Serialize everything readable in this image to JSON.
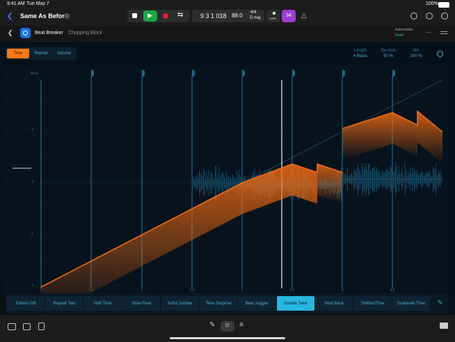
{
  "status_bar": {
    "time": "9:41 AM",
    "date": "Tue May 7",
    "battery": "100%"
  },
  "toolbar": {
    "project": "Same As Before",
    "position": "9 3 1 018",
    "tempo": "88.0",
    "signature": "4/4",
    "key": "D maj",
    "link": "LINK",
    "count": "34"
  },
  "plugin": {
    "name": "Beat Breaker",
    "preset": "Chopping Block",
    "automation": "Automation",
    "automation_mode": "Read"
  },
  "tabs": [
    "Time",
    "Repeat",
    "Volume"
  ],
  "selected_tab": 0,
  "params": [
    {
      "label": "Length",
      "value": "4 Beats"
    },
    {
      "label": "De-click",
      "value": "50 %"
    },
    {
      "label": "Mix",
      "value": "100 %"
    }
  ],
  "graph": {
    "axis_label": "Beat",
    "y_labels": [
      "4",
      "3",
      "2",
      "1"
    ],
    "x_labels": [
      "1",
      "1.5",
      "2",
      "2.5",
      "3",
      "3.5",
      "4",
      "4.5"
    ]
  },
  "presets": [
    "Pattern Off",
    "Repeat Two",
    "Half Time",
    "Slow Flow",
    "Artful Jumble",
    "Time Surprise",
    "Beat Juggler",
    "Double Take",
    "Hold Back",
    "Shifted Flow",
    "Scattered Time"
  ],
  "selected_preset": 7
}
